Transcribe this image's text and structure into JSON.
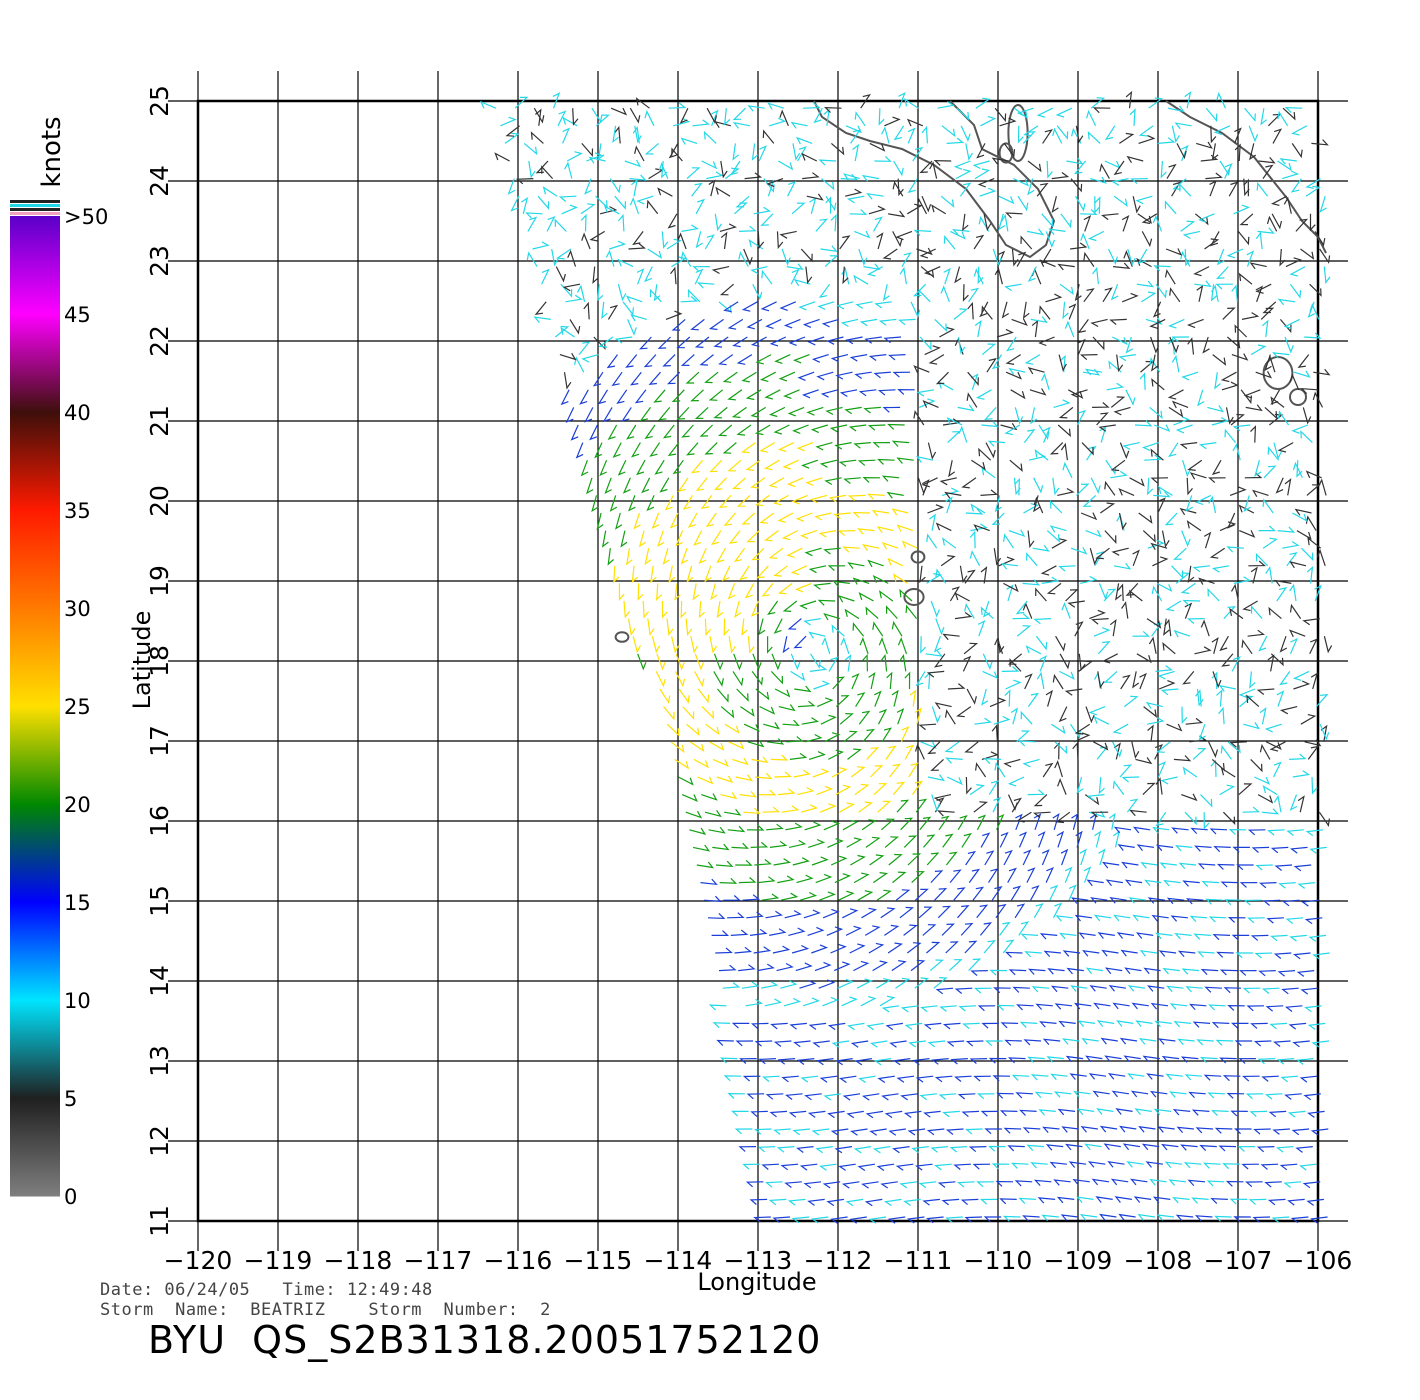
{
  "map": {
    "lon_range": [
      -120,
      -106
    ],
    "lat_range": [
      11,
      25
    ],
    "x_ticks": [
      -120,
      -119,
      -118,
      -117,
      -116,
      -115,
      -114,
      -113,
      -112,
      -111,
      -110,
      -109,
      -108,
      -107,
      -106
    ],
    "y_ticks": [
      11,
      12,
      13,
      14,
      15,
      16,
      17,
      18,
      19,
      20,
      21,
      22,
      23,
      24,
      25
    ],
    "xlabel": "Longitude",
    "ylabel": "Latitude",
    "grid": true,
    "storm_center": {
      "lon": -112.3,
      "lat": 18.1
    },
    "swath_note": "wind barbs plotted within the scatterometer swath"
  },
  "legend": {
    "unit": "knots",
    "top_label": ">50",
    "stops": [
      {
        "value": "0",
        "color": "#7f7f7f"
      },
      {
        "value": "5",
        "color": "#1f1f1f"
      },
      {
        "value": "10",
        "color": "#00e5ff"
      },
      {
        "value": "15",
        "color": "#0000ff"
      },
      {
        "value": "20",
        "color": "#008800"
      },
      {
        "value": "25",
        "color": "#ffe000"
      },
      {
        "value": "30",
        "color": "#ff7a00"
      },
      {
        "value": "35",
        "color": "#ff1a00"
      },
      {
        "value": "40",
        "color": "#3d0f0a"
      },
      {
        "value": "45",
        "color": "#ff00ff"
      },
      {
        "value": ">50",
        "color": "#5a00c8"
      }
    ]
  },
  "info": {
    "line1": "Date: 06/24/05   Time: 12:49:48",
    "line2": "Storm  Name:  BEATRIZ    Storm  Number:  2",
    "title": "BYU  QS_S2B31318.20051752120"
  },
  "colors": {
    "calm": "#333333",
    "light": "#22d8e8",
    "moderate": "#1a3fd8",
    "fresh": "#12a012",
    "strong": "#ffe000",
    "coast": "#555555"
  }
}
